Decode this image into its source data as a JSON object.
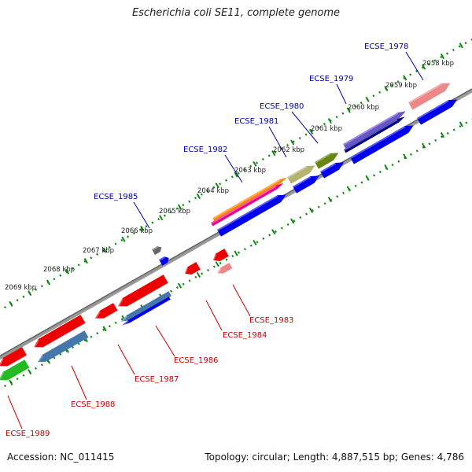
{
  "title": "Escherichia coli SE11, complete genome",
  "footer": {
    "accession": "Accession: NC_011415",
    "stats": "Topology: circular; Length: 4,887,515 bp; Genes: 4,786"
  },
  "ruler_labels": [
    "2058 kbp",
    "2059 kbp",
    "2060 kbp",
    "2061 kbp",
    "2062 kbp",
    "2063 kbp",
    "2064 kbp",
    "2065 kbp",
    "2066 kbp",
    "2067 kbp",
    "2068 kbp",
    "2069 kbp"
  ],
  "gene_labels_top": [
    "ECSE_1978",
    "ECSE_1979",
    "ECSE_1980",
    "ECSE_1981",
    "ECSE_1982",
    "ECSE_1985"
  ],
  "gene_labels_bottom": [
    "ECSE_1983",
    "ECSE_1984",
    "ECSE_1986",
    "ECSE_1987",
    "ECSE_1988",
    "ECSE_1989"
  ],
  "colors": {
    "forward": "#0000ee",
    "reverse": "#ee0000",
    "backbone": "#888888",
    "ruler": "#118811",
    "label_top": "#0000aa",
    "label_bottom": "#cc0000"
  }
}
